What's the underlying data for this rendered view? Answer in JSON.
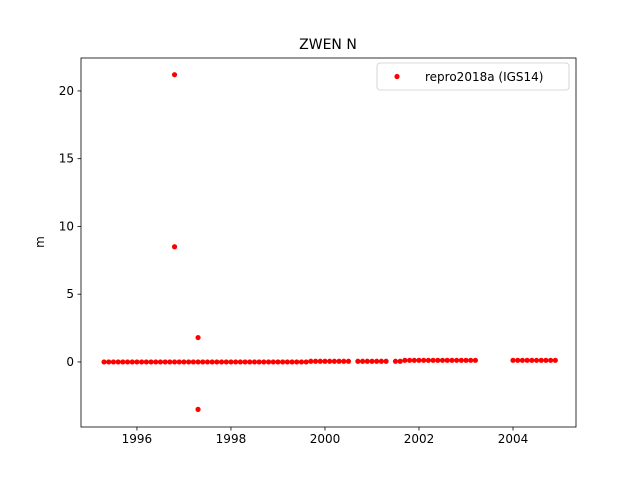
{
  "chart_data": {
    "type": "scatter",
    "title": "ZWEN N",
    "ylabel": "m",
    "xlim": [
      1994.81,
      2005.34
    ],
    "ylim": [
      -4.8,
      22.43
    ],
    "xticks": [
      1996,
      1998,
      2000,
      2002,
      2004
    ],
    "yticks": [
      0,
      5,
      10,
      15,
      20
    ],
    "legend": "upper right",
    "series": [
      {
        "name": "repro2018a (IGS14)",
        "color": "#ff0000",
        "x": [
          1995.3,
          1995.4,
          1995.5,
          1995.6,
          1995.7,
          1995.8,
          1995.9,
          1996,
          1996.1,
          1996.2,
          1996.3,
          1996.4,
          1996.5,
          1996.6,
          1996.7,
          1996.8,
          1996.9,
          1997,
          1997.1,
          1997.2,
          1997.3,
          1997.4,
          1997.5,
          1997.6,
          1997.7,
          1997.8,
          1997.9,
          1998,
          1998.1,
          1998.2,
          1998.3,
          1998.4,
          1998.5,
          1998.6,
          1998.7,
          1998.8,
          1998.9,
          1999,
          1999.1,
          1999.2,
          1999.3,
          1999.4,
          1999.5,
          1999.6,
          1999.7,
          1999.8,
          1999.9,
          2000,
          2000.1,
          2000.2,
          2000.3,
          2000.4,
          2000.5,
          2000.7,
          2000.8,
          2000.9,
          2001,
          2001.1,
          2001.2,
          2001.3,
          2001.5,
          2001.6,
          2001.7,
          2001.8,
          2001.9,
          2002,
          2002.1,
          2002.2,
          2002.3,
          2002.4,
          2002.5,
          2002.6,
          2002.7,
          2002.8,
          2002.9,
          2003,
          2003.1,
          2003.2,
          2004,
          2004.1,
          2004.2,
          2004.3,
          2004.4,
          2004.5,
          2004.6,
          2004.7,
          2004.8,
          2004.9,
          1996.8,
          1996.8,
          1997.3,
          1997.3
        ],
        "values": [
          0,
          0,
          0,
          0,
          0,
          0,
          0,
          0,
          0,
          0,
          0,
          0,
          0,
          0,
          0,
          0,
          0,
          0,
          0,
          0,
          0,
          0,
          0,
          0,
          0,
          0,
          0,
          0,
          0,
          0,
          0,
          0,
          0,
          0,
          0,
          0,
          0,
          0,
          0,
          0,
          0,
          0,
          0,
          0,
          0.05,
          0.05,
          0.05,
          0.05,
          0.05,
          0.05,
          0.05,
          0.05,
          0.05,
          0.05,
          0.05,
          0.05,
          0.05,
          0.05,
          0.05,
          0.05,
          0.05,
          0.05,
          0.12,
          0.12,
          0.12,
          0.12,
          0.12,
          0.12,
          0.12,
          0.12,
          0.12,
          0.12,
          0.12,
          0.12,
          0.12,
          0.12,
          0.12,
          0.12,
          0.12,
          0.12,
          0.12,
          0.12,
          0.12,
          0.12,
          0.12,
          0.12,
          0.12,
          0.12,
          21.2,
          8.5,
          1.8,
          -3.5
        ]
      }
    ]
  }
}
